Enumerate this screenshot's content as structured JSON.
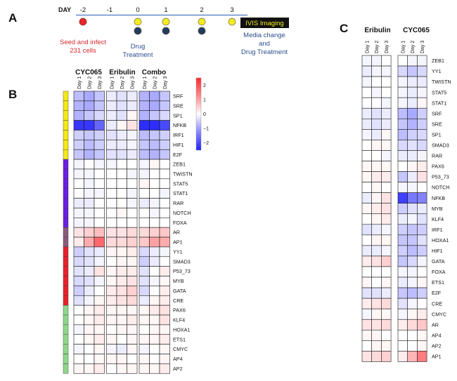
{
  "panels": {
    "A": "A",
    "B": "B",
    "C": "C"
  },
  "timeline": {
    "day_label": "DAY",
    "days": [
      "-2",
      "-1",
      "0",
      "1",
      "2",
      "3"
    ],
    "seed_text": [
      "Seed and infect",
      "231 cells"
    ],
    "drug_text": [
      "Drug",
      "Treatment"
    ],
    "imaging_label": "IVIS Imaging",
    "media_text": [
      "Media change",
      "and",
      "Drug Treatment"
    ],
    "colors": {
      "seed": "#e8262a",
      "yellow": "#f5ec1a",
      "navy": "#233b5e",
      "line": "#4a78c2",
      "text_red": "#d9282f",
      "text_blue": "#2b4e8c"
    }
  },
  "heatmap_b": {
    "groups": [
      "CYC065",
      "Eribulin",
      "Combo"
    ],
    "day_labels": [
      "Day 1",
      "Day 2",
      "Day 3"
    ],
    "rows": [
      "SRF",
      "SRE",
      "SP1",
      "NFKB",
      "IRF1",
      "HIF1",
      "E2F",
      "ZEB1",
      "TWISTN",
      "STAT5",
      "STAT1",
      "RAR",
      "NOTCH",
      "FOXA",
      "AR",
      "AP1",
      "YY1",
      "SMAD3",
      "P53_73",
      "MYB",
      "GATA",
      "CRE",
      "PAX6",
      "KLF4",
      "HOXA1",
      "ETS1",
      "CMYC",
      "AP4",
      "AP2"
    ],
    "cluster_colors": [
      "#f3e819",
      "#f3e819",
      "#f3e819",
      "#f3e819",
      "#f3e819",
      "#f3e819",
      "#f3e819",
      "#6a1fe0",
      "#6a1fe0",
      "#6a1fe0",
      "#6a1fe0",
      "#6a1fe0",
      "#6a1fe0",
      "#6a1fe0",
      "#8d5a7c",
      "#8d5a7c",
      "#e8222a",
      "#e8222a",
      "#e8222a",
      "#e8222a",
      "#e8222a",
      "#e8222a",
      "#8ed88a",
      "#8ed88a",
      "#8ed88a",
      "#8ed88a",
      "#8ed88a",
      "#8ed88a",
      "#8ed88a"
    ],
    "values": [
      [
        -0.7,
        -0.9,
        -0.6,
        -0.2,
        -0.3,
        -0.2,
        -0.8,
        -0.9,
        -0.6
      ],
      [
        -0.8,
        -0.9,
        -0.6,
        -0.2,
        -0.3,
        -0.2,
        -0.8,
        -0.9,
        -0.6
      ],
      [
        -0.8,
        -0.6,
        -0.4,
        -0.2,
        -0.3,
        0.1,
        -0.8,
        -0.6,
        -0.4
      ],
      [
        -2.1,
        -2.1,
        -1.6,
        -0.2,
        0.1,
        0.3,
        -2.2,
        -2.2,
        -1.9
      ],
      [
        -0.5,
        -0.6,
        -0.5,
        -0.3,
        -0.2,
        -0.1,
        -0.7,
        -0.6,
        -0.5
      ],
      [
        -0.5,
        -0.7,
        -0.5,
        -0.2,
        -0.2,
        -0.1,
        -0.6,
        -0.7,
        -0.5
      ],
      [
        -0.6,
        -0.8,
        -0.6,
        -0.3,
        -0.3,
        -0.2,
        -0.7,
        -0.8,
        -0.6
      ],
      [
        -0.1,
        0.0,
        -0.1,
        -0.1,
        0.0,
        0.0,
        -0.1,
        0.1,
        0.0
      ],
      [
        -0.1,
        -0.1,
        0.0,
        0.0,
        0.0,
        -0.1,
        -0.1,
        0.0,
        0.0
      ],
      [
        0.0,
        -0.1,
        0.0,
        0.0,
        0.0,
        0.0,
        0.1,
        0.0,
        0.0
      ],
      [
        0.0,
        -0.1,
        -0.1,
        0.0,
        0.0,
        -0.1,
        0.0,
        0.0,
        -0.1
      ],
      [
        -0.2,
        -0.2,
        0.0,
        0.0,
        0.0,
        -0.1,
        -0.2,
        -0.1,
        0.0
      ],
      [
        -0.1,
        -0.1,
        0.0,
        0.0,
        0.1,
        0.0,
        0.0,
        -0.1,
        0.0
      ],
      [
        -0.1,
        -0.1,
        0.0,
        0.0,
        0.0,
        0.0,
        0.0,
        0.0,
        0.0
      ],
      [
        0.3,
        0.5,
        0.7,
        0.3,
        0.3,
        0.4,
        0.4,
        0.5,
        0.6
      ],
      [
        0.2,
        0.9,
        1.6,
        0.4,
        0.4,
        0.5,
        0.6,
        1.0,
        0.9
      ],
      [
        -0.5,
        -0.3,
        -0.2,
        0.1,
        0.1,
        0.2,
        -0.4,
        -0.2,
        -0.1
      ],
      [
        -0.4,
        -0.3,
        -0.1,
        0.0,
        0.1,
        0.1,
        -0.5,
        -0.2,
        0.0
      ],
      [
        -0.3,
        -0.2,
        0.3,
        0.1,
        0.2,
        0.2,
        -0.3,
        0.0,
        0.2
      ],
      [
        -0.4,
        -0.3,
        -0.1,
        0.1,
        0.2,
        0.3,
        -0.3,
        -0.1,
        0.1
      ],
      [
        -0.5,
        -0.2,
        0.0,
        0.2,
        0.3,
        0.5,
        -0.4,
        0.0,
        0.2
      ],
      [
        -0.3,
        -0.1,
        0.1,
        0.2,
        0.3,
        0.4,
        -0.2,
        0.1,
        0.2
      ],
      [
        0.0,
        0.1,
        0.2,
        0.1,
        0.1,
        0.1,
        0.1,
        0.2,
        0.3
      ],
      [
        0.0,
        0.1,
        0.2,
        0.1,
        0.1,
        0.2,
        0.1,
        0.1,
        0.3
      ],
      [
        -0.1,
        0.1,
        0.1,
        0.0,
        0.1,
        0.1,
        0.0,
        0.1,
        0.1
      ],
      [
        0.0,
        0.1,
        0.2,
        0.1,
        0.0,
        0.1,
        0.1,
        0.1,
        0.2
      ],
      [
        -0.1,
        0.0,
        0.1,
        -0.1,
        -0.2,
        0.1,
        -0.1,
        0.0,
        0.1
      ],
      [
        0.0,
        0.0,
        0.1,
        0.1,
        0.1,
        0.0,
        0.1,
        0.0,
        0.1
      ],
      [
        0.1,
        0.1,
        0.2,
        0.0,
        0.1,
        0.1,
        0.1,
        0.1,
        0.2
      ]
    ],
    "colorbar": {
      "ticks": [
        "2",
        "1",
        "0",
        "−1",
        "−2"
      ],
      "min": -2.5,
      "max": 2.5
    }
  },
  "heatmap_c": {
    "groups": [
      "Eribulin",
      "CYC065"
    ],
    "day_labels": [
      "Day 1",
      "Day 2",
      "Day 3"
    ],
    "rows": [
      "ZEB1",
      "YY1",
      "TWISTN",
      "STAT5",
      "STAT1",
      "SRF",
      "SRE",
      "SP1",
      "SMAD3",
      "RAR",
      "PAX6",
      "P53_73",
      "NOTCH",
      "NFKB",
      "MYB",
      "KLF4",
      "IRF1",
      "HOXA1",
      "HIF1",
      "GATA",
      "FOXA",
      "ETS1",
      "E2F",
      "CRE",
      "CMYC",
      "AR",
      "AP4",
      "AP2",
      "AP1"
    ],
    "values": [
      [
        -0.1,
        -0.1,
        0.0,
        0.0,
        -0.1,
        -0.1
      ],
      [
        -0.2,
        -0.1,
        -0.1,
        -0.4,
        -0.6,
        -0.4
      ],
      [
        -0.1,
        0.0,
        0.0,
        -0.1,
        -0.2,
        -0.2
      ],
      [
        0.0,
        -0.1,
        0.0,
        -0.1,
        -0.2,
        -0.1
      ],
      [
        0.0,
        0.0,
        -0.1,
        -0.1,
        -0.2,
        0.1
      ],
      [
        -0.2,
        -0.3,
        -0.2,
        -0.7,
        -0.9,
        -0.5
      ],
      [
        -0.2,
        -0.3,
        -0.2,
        -0.6,
        -0.8,
        -0.5
      ],
      [
        -0.1,
        -0.2,
        0.1,
        -0.7,
        -0.5,
        -0.4
      ],
      [
        0.0,
        0.1,
        0.1,
        -0.4,
        -0.3,
        -0.4
      ],
      [
        0.0,
        0.0,
        -0.1,
        -0.2,
        -0.2,
        -0.1
      ],
      [
        0.1,
        0.1,
        0.1,
        0.0,
        0.1,
        0.2
      ],
      [
        0.1,
        0.2,
        0.2,
        -0.6,
        -0.2,
        0.3
      ],
      [
        0.0,
        0.1,
        0.0,
        -0.1,
        -0.1,
        0.0
      ],
      [
        -0.2,
        0.1,
        0.3,
        -2.0,
        -1.4,
        -1.3
      ],
      [
        0.1,
        0.2,
        0.3,
        -0.5,
        -0.3,
        -0.2
      ],
      [
        0.0,
        0.1,
        0.2,
        -0.2,
        -0.1,
        -0.3
      ],
      [
        -0.3,
        -0.2,
        -0.1,
        -0.5,
        -0.6,
        -0.5
      ],
      [
        0.0,
        0.1,
        0.1,
        -0.6,
        -0.6,
        -0.3
      ],
      [
        -0.2,
        -0.2,
        -0.1,
        -0.5,
        -0.7,
        -0.5
      ],
      [
        0.2,
        0.3,
        0.5,
        -0.6,
        -0.4,
        -0.1
      ],
      [
        0.0,
        0.0,
        0.0,
        -0.1,
        -0.1,
        0.0
      ],
      [
        0.1,
        0.0,
        0.1,
        -0.2,
        -0.1,
        0.1
      ],
      [
        -0.3,
        -0.3,
        -0.2,
        -0.6,
        -0.7,
        -0.5
      ],
      [
        0.2,
        0.3,
        0.4,
        -0.3,
        -0.1,
        0.0
      ],
      [
        -0.1,
        0.1,
        0.1,
        -0.1,
        0.1,
        0.2
      ],
      [
        0.3,
        0.3,
        0.4,
        0.2,
        0.4,
        0.6
      ],
      [
        0.1,
        0.1,
        0.0,
        0.0,
        0.0,
        0.1
      ],
      [
        0.0,
        0.1,
        0.1,
        0.0,
        0.0,
        0.1
      ],
      [
        0.3,
        0.4,
        0.5,
        0.2,
        0.8,
        1.4
      ]
    ]
  }
}
